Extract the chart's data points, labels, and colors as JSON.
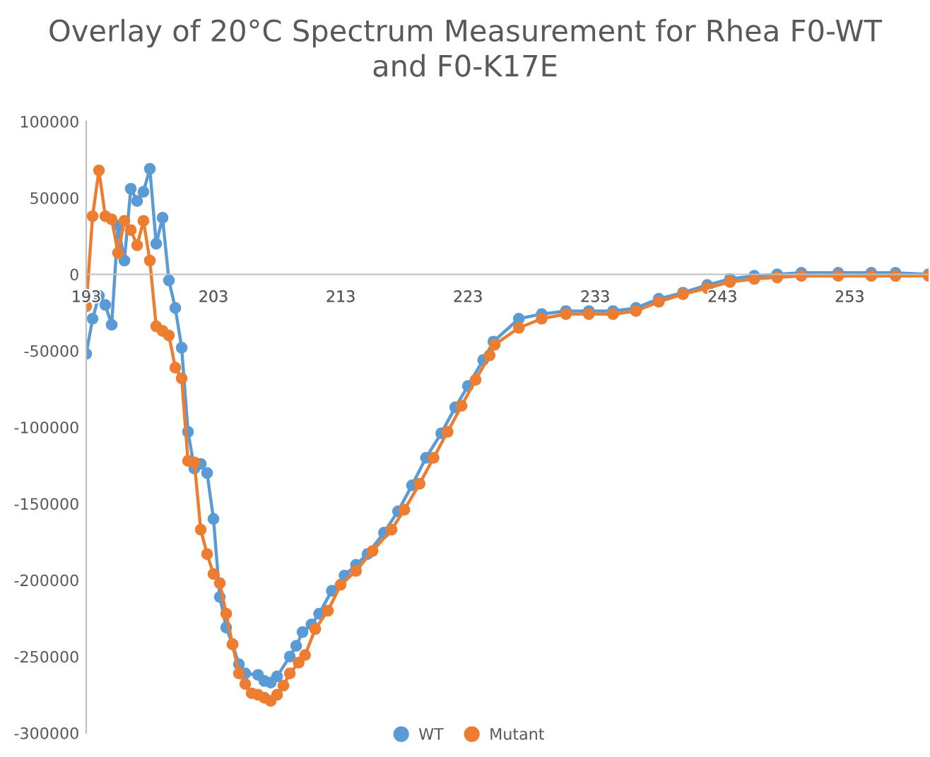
{
  "chart_data": {
    "type": "line",
    "title": "Overlay of 20°C Spectrum Measurement for Rhea F0-WT\nand F0-K17E",
    "xlim": [
      193,
      259.2
    ],
    "xticks": [
      193,
      203,
      213,
      223,
      233,
      243,
      253
    ],
    "ylim": [
      -300000,
      100000
    ],
    "yticks": [
      -300000,
      -250000,
      -200000,
      -150000,
      -100000,
      -50000,
      0,
      50000,
      100000
    ],
    "grid": false,
    "legend": "bottom",
    "marker": "circle",
    "line_style": "solid",
    "series": [
      {
        "name": "WT",
        "color": "#5b9bd5",
        "x": [
          193,
          193.5,
          194,
          194.5,
          195,
          195.5,
          196,
          196.5,
          197,
          197.5,
          198,
          198.5,
          199,
          199.5,
          200,
          200.5,
          201,
          201.5,
          202,
          202.5,
          203,
          203.5,
          204,
          204.5,
          205,
          205.5,
          206.5,
          207,
          207.5,
          208,
          209,
          209.5,
          210,
          210.7,
          211.3,
          212.3,
          213.3,
          214.2,
          215.1,
          216.4,
          217.5,
          218.6,
          219.7,
          220.9,
          222,
          223,
          224.2,
          225,
          227,
          228.8,
          230.7,
          232.5,
          234.4,
          236.2,
          238,
          239.9,
          241.8,
          243.6,
          245.5,
          247.3,
          249.2,
          252.1,
          254.7,
          256.6,
          259.2
        ],
        "values": [
          -52000,
          -29000,
          -14000,
          -20000,
          -33000,
          32000,
          9000,
          56000,
          48000,
          54000,
          69000,
          20000,
          37000,
          -4000,
          -22000,
          -48000,
          -103000,
          -127000,
          -124000,
          -130000,
          -160000,
          -211000,
          -231000,
          -242000,
          -255000,
          -261000,
          -262000,
          -266000,
          -267000,
          -263000,
          -250000,
          -243000,
          -234000,
          -229000,
          -222000,
          -207000,
          -197000,
          -190000,
          -183000,
          -169000,
          -155000,
          -138000,
          -120000,
          -104000,
          -87000,
          -73000,
          -56000,
          -44000,
          -29000,
          -26000,
          -24000,
          -24000,
          -24000,
          -22000,
          -16000,
          -12000,
          -7000,
          -3000,
          -1000,
          0,
          1000,
          1000,
          1000,
          1000,
          0
        ]
      },
      {
        "name": "Mutant",
        "color": "#ed7d31",
        "x": [
          193,
          193.5,
          194,
          194.5,
          195,
          195.5,
          196,
          196.5,
          197,
          197.5,
          198,
          198.5,
          199,
          199.5,
          200,
          200.5,
          201,
          201.5,
          202,
          202.5,
          203,
          203.5,
          204,
          204.5,
          205,
          205.5,
          206,
          206.5,
          207,
          207.5,
          208,
          208.5,
          209,
          209.7,
          210.2,
          211,
          212,
          213,
          214.2,
          215.5,
          217,
          218,
          219.2,
          220.3,
          221.4,
          222.5,
          223.6,
          224.7,
          225.1,
          227,
          228.8,
          230.7,
          232.5,
          234.4,
          236.2,
          238,
          239.9,
          241.8,
          243.6,
          245.5,
          247.3,
          249.2,
          252.1,
          254.7,
          256.6,
          259.2
        ],
        "values": [
          -21000,
          38000,
          68000,
          38000,
          36000,
          14000,
          35000,
          29000,
          19000,
          35000,
          9000,
          -34000,
          -37000,
          -40000,
          -61000,
          -68000,
          -122000,
          -123000,
          -167000,
          -183000,
          -196000,
          -202000,
          -222000,
          -242000,
          -261000,
          -268000,
          -274000,
          -275000,
          -277000,
          -279000,
          -275000,
          -269000,
          -261000,
          -254000,
          -249000,
          -232000,
          -220000,
          -203000,
          -194000,
          -181000,
          -167000,
          -154000,
          -137000,
          -120000,
          -103000,
          -86000,
          -69000,
          -53000,
          -46000,
          -35000,
          -29000,
          -26000,
          -26000,
          -26000,
          -24000,
          -18000,
          -13000,
          -9000,
          -5000,
          -3000,
          -2000,
          -1000,
          -1000,
          -1000,
          -1000,
          -1000
        ]
      }
    ]
  }
}
